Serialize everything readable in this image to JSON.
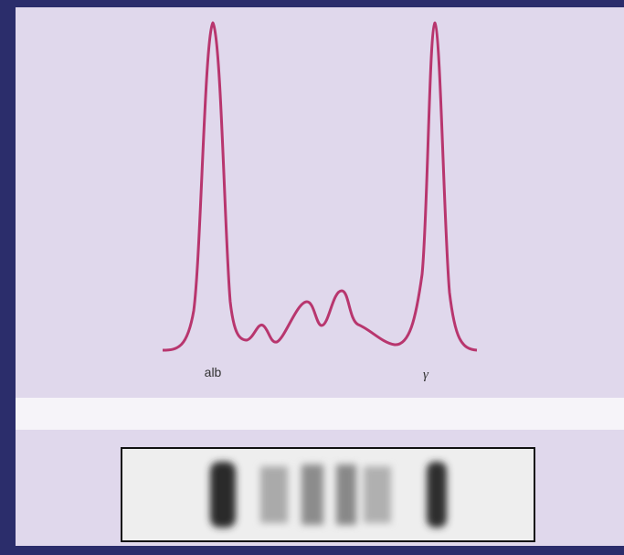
{
  "labels": {
    "albumin": "alb",
    "gamma": "γ"
  }
}
